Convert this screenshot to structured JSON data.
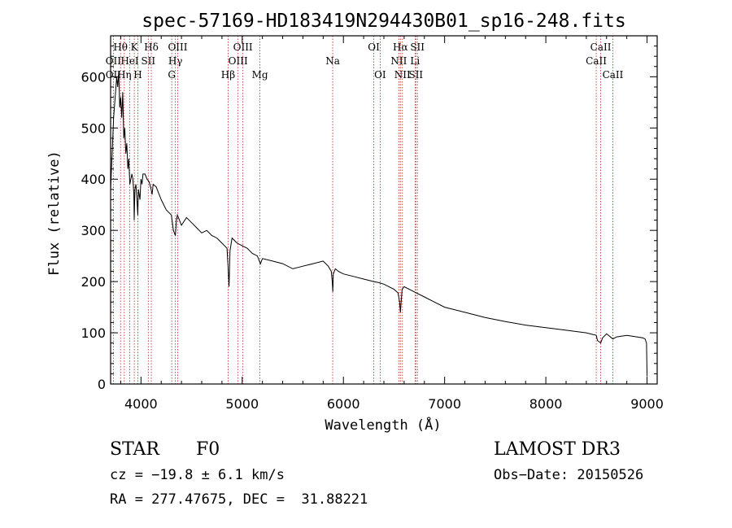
{
  "chart_data": {
    "type": "line",
    "title": "spec-57169-HD183419N294430B01_sp16-248.fits",
    "xlabel": "Wavelength (Å)",
    "ylabel": "Flux (relative)",
    "xlim": [
      3700,
      9100
    ],
    "ylim": [
      0,
      680
    ],
    "xticks": [
      4000,
      5000,
      6000,
      7000,
      8000,
      9000
    ],
    "yticks": [
      0,
      100,
      200,
      300,
      400,
      500,
      600
    ],
    "line_color": "#000000",
    "marker_color": "#b22222",
    "series": [
      {
        "name": "flux",
        "x": [
          3700,
          3715,
          3730,
          3745,
          3760,
          3770,
          3780,
          3790,
          3800,
          3810,
          3820,
          3830,
          3840,
          3850,
          3860,
          3870,
          3880,
          3890,
          3900,
          3910,
          3920,
          3930,
          3933,
          3940,
          3950,
          3960,
          3968,
          3975,
          3990,
          4000,
          4010,
          4020,
          4040,
          4060,
          4080,
          4100,
          4110,
          4120,
          4150,
          4200,
          4250,
          4300,
          4320,
          4340,
          4350,
          4360,
          4400,
          4450,
          4500,
          4550,
          4600,
          4650,
          4700,
          4750,
          4800,
          4850,
          4860,
          4870,
          4880,
          4900,
          4950,
          5000,
          5050,
          5100,
          5150,
          5170,
          5180,
          5200,
          5300,
          5400,
          5500,
          5600,
          5700,
          5800,
          5850,
          5880,
          5890,
          5895,
          5900,
          5920,
          5950,
          6000,
          6100,
          6200,
          6300,
          6350,
          6400,
          6450,
          6500,
          6540,
          6555,
          6563,
          6570,
          6580,
          6600,
          6700,
          6800,
          6900,
          7000,
          7200,
          7400,
          7600,
          7800,
          8000,
          8200,
          8400,
          8498,
          8510,
          8542,
          8560,
          8600,
          8662,
          8700,
          8800,
          8900,
          8960,
          8980,
          8995,
          9000
        ],
        "y": [
          380,
          450,
          520,
          560,
          600,
          580,
          610,
          540,
          560,
          520,
          570,
          480,
          500,
          450,
          470,
          420,
          440,
          390,
          400,
          410,
          400,
          370,
          320,
          380,
          390,
          360,
          330,
          380,
          360,
          400,
          390,
          410,
          410,
          400,
          395,
          380,
          370,
          390,
          385,
          360,
          340,
          330,
          300,
          290,
          320,
          330,
          310,
          325,
          315,
          305,
          295,
          300,
          290,
          285,
          275,
          265,
          230,
          190,
          260,
          285,
          275,
          270,
          265,
          255,
          250,
          240,
          235,
          245,
          240,
          235,
          225,
          230,
          235,
          240,
          230,
          220,
          200,
          180,
          215,
          225,
          220,
          215,
          210,
          205,
          200,
          198,
          195,
          190,
          185,
          178,
          160,
          140,
          160,
          185,
          190,
          180,
          170,
          160,
          150,
          140,
          130,
          122,
          115,
          110,
          105,
          100,
          95,
          85,
          80,
          90,
          98,
          88,
          92,
          95,
          92,
          90,
          88,
          80,
          15
        ]
      }
    ],
    "lines": [
      {
        "label": "OII",
        "x": 3727,
        "row": 2
      },
      {
        "label": "OII",
        "x": 3727,
        "row": 3
      },
      {
        "label": "Hθ",
        "x": 3798,
        "row": 1
      },
      {
        "label": "Hη",
        "x": 3835,
        "row": 3
      },
      {
        "label": "HeI",
        "x": 3889,
        "row": 2
      },
      {
        "label": "K",
        "x": 3934,
        "row": 1
      },
      {
        "label": "H",
        "x": 3969,
        "row": 3
      },
      {
        "label": "SII",
        "x": 4072,
        "row": 2
      },
      {
        "label": "Hδ",
        "x": 4102,
        "row": 1
      },
      {
        "label": "G",
        "x": 4304,
        "row": 3
      },
      {
        "label": "Hγ",
        "x": 4340,
        "row": 2
      },
      {
        "label": "OIII",
        "x": 4363,
        "row": 1
      },
      {
        "label": "Hβ",
        "x": 4861,
        "row": 3
      },
      {
        "label": "OIII",
        "x": 4959,
        "row": 2
      },
      {
        "label": "OIII",
        "x": 5007,
        "row": 1
      },
      {
        "label": "Mg",
        "x": 5175,
        "row": 3
      },
      {
        "label": "Na",
        "x": 5894,
        "row": 2
      },
      {
        "label": "OI",
        "x": 6300,
        "row": 1
      },
      {
        "label": "OI",
        "x": 6363,
        "row": 3
      },
      {
        "label": "NII",
        "x": 6548,
        "row": 2
      },
      {
        "label": "Hα",
        "x": 6563,
        "row": 1
      },
      {
        "label": "NII",
        "x": 6583,
        "row": 3
      },
      {
        "label": "Li",
        "x": 6708,
        "row": 2
      },
      {
        "label": "SII",
        "x": 6716,
        "row": 3
      },
      {
        "label": "SII",
        "x": 6731,
        "row": 1
      },
      {
        "label": "CaII",
        "x": 8498,
        "row": 2
      },
      {
        "label": "CaII",
        "x": 8542,
        "row": 1
      },
      {
        "label": "CaII",
        "x": 8662,
        "row": 3
      }
    ]
  },
  "info": {
    "object_class": "STAR",
    "subclass": "F0",
    "survey": "LAMOST DR3",
    "redshift": "cz = −19.8 ± 6.1 km/s",
    "obs_date": "Obs−Date: 20150526",
    "coords": "RA = 277.47675, DEC =  31.88221"
  }
}
